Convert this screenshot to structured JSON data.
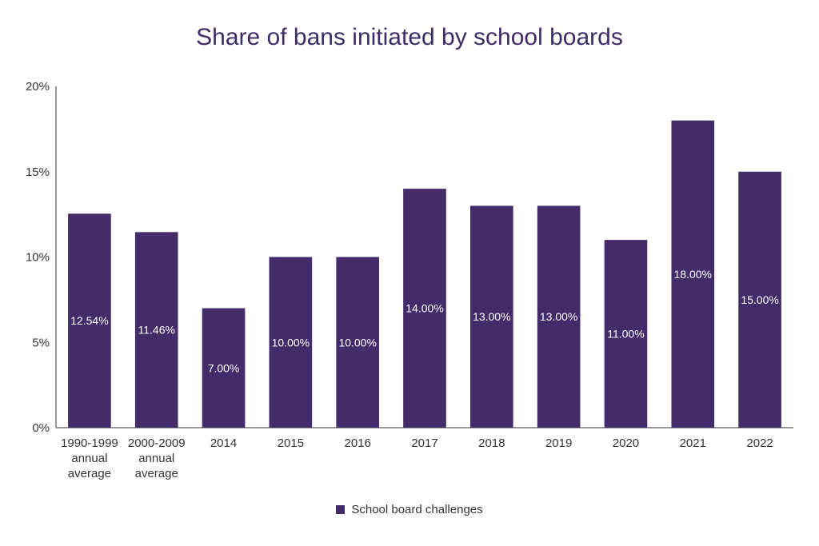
{
  "colors": {
    "bar": "#432c69",
    "title": "#3f2b66",
    "axis": "#333333",
    "data_label": "#ffffff"
  },
  "chart_data": {
    "type": "bar",
    "title": "Share of bans initiated by school boards",
    "xlabel": "",
    "ylabel": "",
    "categories": [
      [
        "1990-1999",
        "annual",
        "average"
      ],
      [
        "2000-2009",
        "annual",
        "average"
      ],
      [
        "2014"
      ],
      [
        "2015"
      ],
      [
        "2016"
      ],
      [
        "2017"
      ],
      [
        "2018"
      ],
      [
        "2019"
      ],
      [
        "2020"
      ],
      [
        "2021"
      ],
      [
        "2022"
      ]
    ],
    "series": [
      {
        "name": "School board challenges",
        "values": [
          12.54,
          11.46,
          7.0,
          10.0,
          10.0,
          14.0,
          13.0,
          13.0,
          11.0,
          18.0,
          15.0
        ],
        "labels": [
          "12.54%",
          "11.46%",
          "7.00%",
          "10.00%",
          "10.00%",
          "14.00%",
          "13.00%",
          "13.00%",
          "11.00%",
          "18.00%",
          "15.00%"
        ]
      }
    ],
    "ylim": [
      0,
      20
    ],
    "yticks": [
      {
        "value": 0,
        "label": "0%"
      },
      {
        "value": 5,
        "label": "5%"
      },
      {
        "value": 10,
        "label": "10%"
      },
      {
        "value": 15,
        "label": "15%"
      },
      {
        "value": 20,
        "label": "20%"
      }
    ],
    "grid": false,
    "legend_position": "bottom-center"
  }
}
